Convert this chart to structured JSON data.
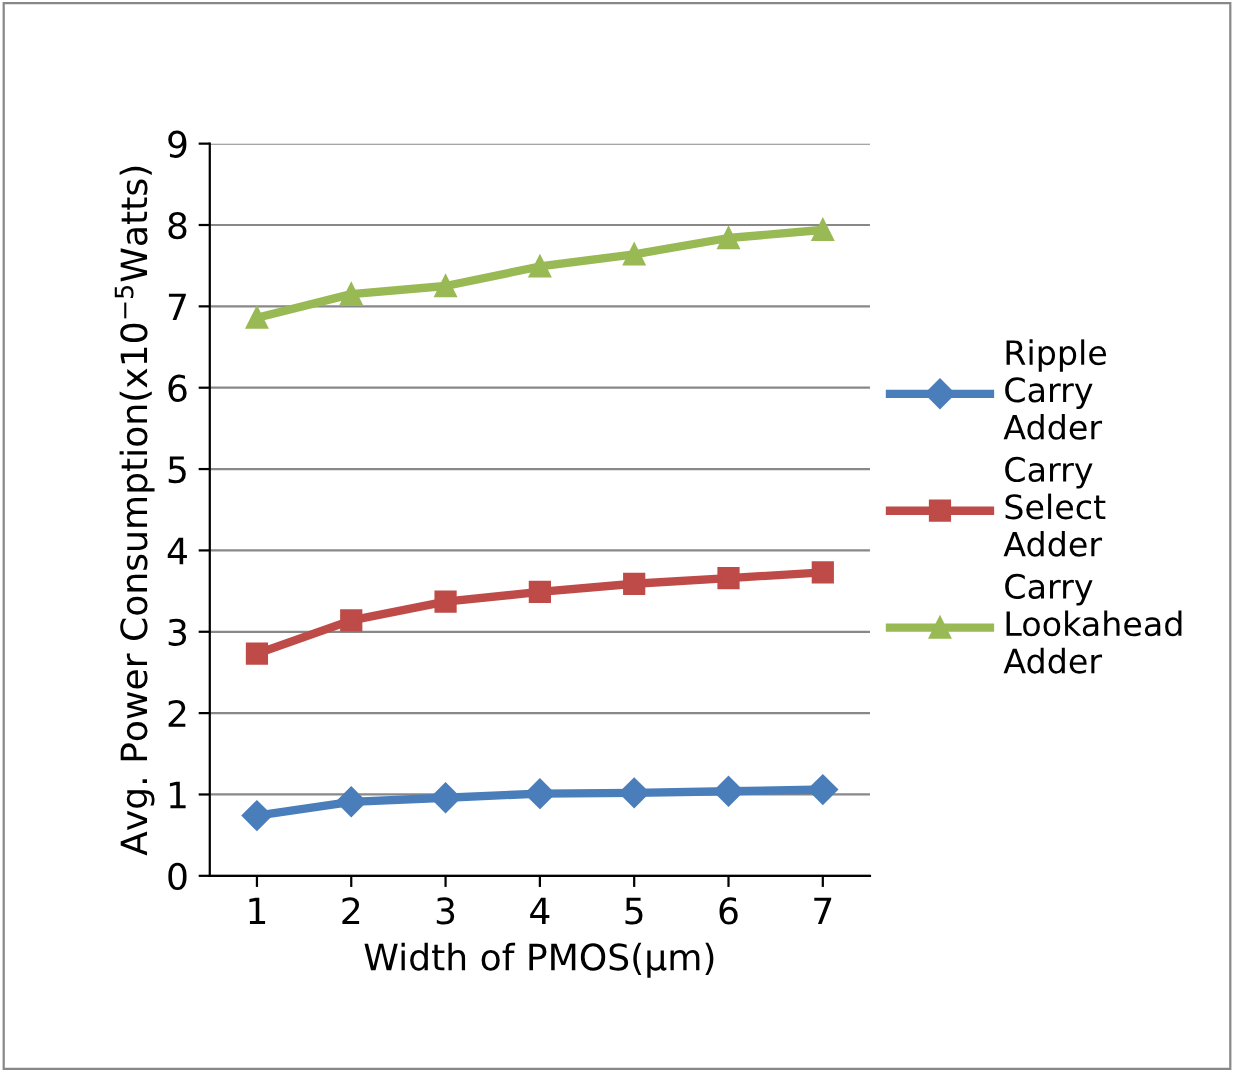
{
  "chart_data": {
    "type": "line",
    "xlabel": "Width of PMOS(μm)",
    "ylabel": "Avg. Power Consumption(x10$^{−5}$Watts)",
    "categories": [
      "1",
      "2",
      "3",
      "4",
      "5",
      "6",
      "7"
    ],
    "series": [
      {
        "name": "Ripple\nCarry\nAdder",
        "color": "#4a7ebb",
        "marker": "diamond",
        "values": [
          0.74,
          0.91,
          0.96,
          1.01,
          1.02,
          1.04,
          1.06
        ]
      },
      {
        "name": "Carry\nSelect\nAdder",
        "color": "#be4b48",
        "marker": "square",
        "values": [
          2.73,
          3.14,
          3.37,
          3.49,
          3.59,
          3.66,
          3.73
        ]
      },
      {
        "name": "Carry\nLookahead\nAdder",
        "color": "#98b954",
        "marker": "triangle",
        "values": [
          6.86,
          7.15,
          7.25,
          7.49,
          7.64,
          7.84,
          7.94
        ]
      }
    ],
    "ylim": [
      0,
      9
    ],
    "yticks": [
      0,
      1,
      2,
      3,
      4,
      5,
      6,
      7,
      8,
      9
    ],
    "grid": "y",
    "legend": "right",
    "line_style": "solid"
  }
}
